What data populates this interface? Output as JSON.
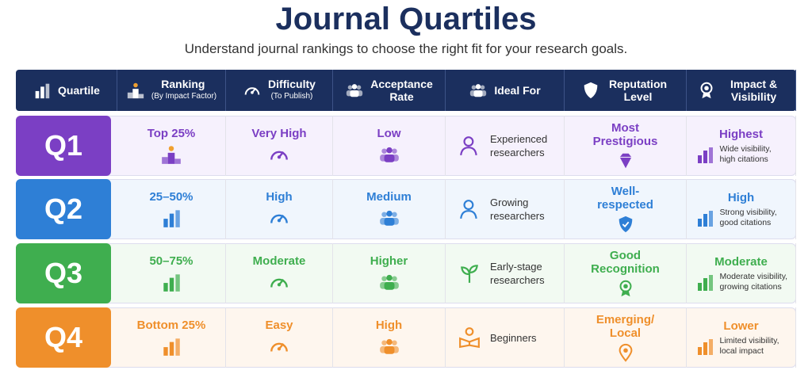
{
  "header": {
    "title": "Journal Quartiles",
    "subtitle": "Understand journal rankings to choose the right fit for your research goals."
  },
  "table": {
    "columns": [
      {
        "label": "Quartile"
      },
      {
        "label": "Ranking",
        "sublabel": "(By Impact Factor)"
      },
      {
        "label": "Difficulty",
        "sublabel": "(To Publish)"
      },
      {
        "label": "Acceptance Rate"
      },
      {
        "label": "Ideal For"
      },
      {
        "label": "Reputation Level"
      },
      {
        "label": "Impact & Visibility"
      }
    ],
    "rows": [
      {
        "quartile": "Q1",
        "color": "#7b3fc4",
        "tint": "#f6f1fd",
        "ranking": "Top 25%",
        "difficulty": "Very High",
        "acceptance": "Low",
        "ideal": "Experienced researchers",
        "reputation": "Most Prestigious",
        "impact": "Highest",
        "impact_note": "Wide visibility, high citations"
      },
      {
        "quartile": "Q2",
        "color": "#2e7fd6",
        "tint": "#f0f6fd",
        "ranking": "25–50%",
        "difficulty": "High",
        "acceptance": "Medium",
        "ideal": "Growing researchers",
        "reputation": "Well-respected",
        "impact": "High",
        "impact_note": "Strong visibility, good citations"
      },
      {
        "quartile": "Q3",
        "color": "#3fae4f",
        "tint": "#f2faf2",
        "ranking": "50–75%",
        "difficulty": "Moderate",
        "acceptance": "Higher",
        "ideal": "Early-stage researchers",
        "reputation": "Good Recognition",
        "impact": "Moderate",
        "impact_note": "Moderate visibility, growing citations"
      },
      {
        "quartile": "Q4",
        "color": "#ef8f2b",
        "tint": "#fef6ee",
        "ranking": "Bottom 25%",
        "difficulty": "Easy",
        "acceptance": "High",
        "ideal": "Beginners",
        "reputation": "Emerging/ Local",
        "impact": "Lower",
        "impact_note": "Limited visibility, local impact"
      }
    ]
  }
}
